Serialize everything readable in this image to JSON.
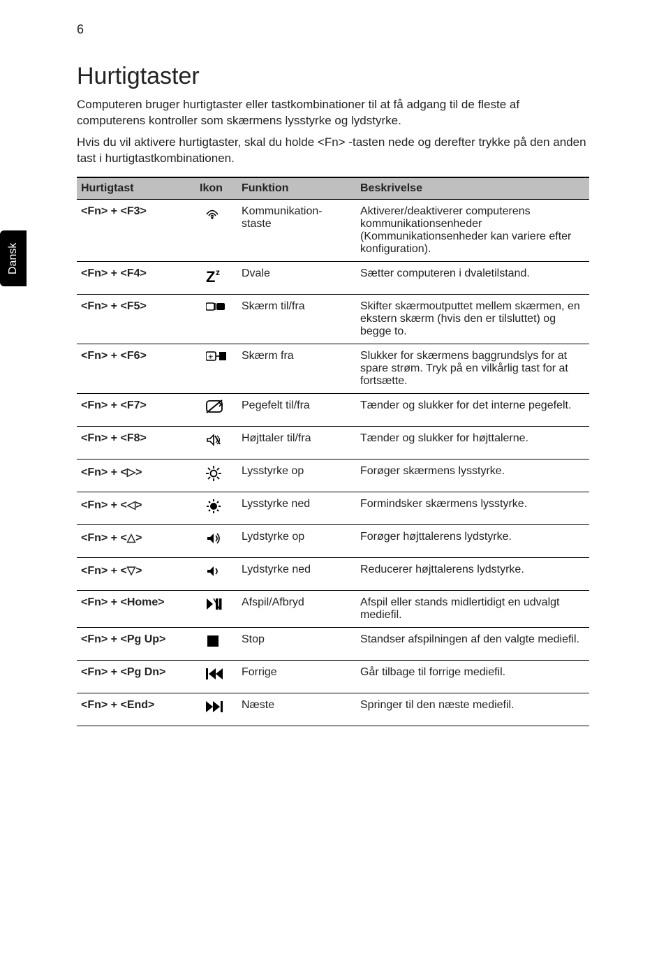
{
  "page_number": "6",
  "side_tab": "Dansk",
  "heading": "Hurtigtaster",
  "intro_paragraphs": [
    "Computeren bruger hurtigtaster eller tastkombinationer til at få adgang til de fleste af computerens kontroller som skærmens lysstyrke og lydstyrke.",
    "Hvis du vil aktivere hurtigtaster, skal du holde <Fn> -tasten nede og derefter trykke på den anden tast i hurtigtastkombinationen."
  ],
  "table": {
    "headers": [
      "Hurtigtast",
      "Ikon",
      "Funktion",
      "Beskrivelse"
    ],
    "col_widths": [
      "170px",
      "60px",
      "170px",
      "auto"
    ],
    "rows": [
      {
        "hotkey": "<Fn> + <F3>",
        "icon": "wireless",
        "function": "Kommunikation-staste",
        "desc": "Aktiverer/deaktiverer computerens kommunikationsenheder (Kommunikationsenheder kan variere efter konfiguration)."
      },
      {
        "hotkey": "<Fn> + <F4>",
        "icon": "sleep",
        "function": "Dvale",
        "desc": "Sætter computeren i dvaletilstand."
      },
      {
        "hotkey": "<Fn> + <F5>",
        "icon": "display",
        "function": "Skærm til/fra",
        "desc": "Skifter skærmoutputtet mellem skærmen, en ekstern skærm (hvis den er tilsluttet) og begge to."
      },
      {
        "hotkey": "<Fn> + <F6>",
        "icon": "screenoff",
        "function": "Skærm fra",
        "desc": "Slukker for skærmens baggrundslys for at spare strøm. Tryk på en vilkårlig tast for at fortsætte."
      },
      {
        "hotkey": "<Fn> + <F7>",
        "icon": "touchpad",
        "function": "Pegefelt til/fra",
        "desc": "Tænder og slukker for det interne pegefelt."
      },
      {
        "hotkey": "<Fn> + <F8>",
        "icon": "mute",
        "function": "Højttaler til/fra",
        "desc": "Tænder og slukker for højttalerne."
      },
      {
        "hotkey": "<Fn> + <▷>",
        "icon": "brightup",
        "function": "Lysstyrke op",
        "desc": "Forøger skærmens lysstyrke."
      },
      {
        "hotkey": "<Fn> + <◁>",
        "icon": "brightdown",
        "function": "Lysstyrke ned",
        "desc": "Formindsker skærmens lysstyrke."
      },
      {
        "hotkey": "<Fn> + <△>",
        "icon": "volup",
        "function": "Lydstyrke op",
        "desc": "Forøger højttalerens lydstyrke."
      },
      {
        "hotkey": "<Fn> + <▽>",
        "icon": "voldown",
        "function": "Lydstyrke ned",
        "desc": "Reducerer højttalerens lydstyrke."
      },
      {
        "hotkey": "<Fn> + <Home>",
        "icon": "playpause",
        "function": "Afspil/Afbryd",
        "desc": "Afspil eller stands midlertidigt en udvalgt mediefil."
      },
      {
        "hotkey": "<Fn> + <Pg Up>",
        "icon": "stop",
        "function": "Stop",
        "desc": "Standser afspilningen af den valgte mediefil."
      },
      {
        "hotkey": "<Fn> + <Pg Dn>",
        "icon": "prev",
        "function": "Forrige",
        "desc": "Går tilbage til forrige mediefil."
      },
      {
        "hotkey": "<Fn> + <End>",
        "icon": "next",
        "function": "Næste",
        "desc": "Springer til den næste mediefil."
      }
    ],
    "icons": {
      "wireless": {
        "label": "wireless-icon"
      },
      "sleep": {
        "label": "sleep-icon"
      },
      "display": {
        "label": "display-toggle-icon"
      },
      "screenoff": {
        "label": "screen-off-icon"
      },
      "touchpad": {
        "label": "touchpad-icon"
      },
      "mute": {
        "label": "mute-icon"
      },
      "brightup": {
        "label": "brightness-up-icon"
      },
      "brightdown": {
        "label": "brightness-down-icon"
      },
      "volup": {
        "label": "volume-up-icon"
      },
      "voldown": {
        "label": "volume-down-icon"
      },
      "playpause": {
        "label": "play-pause-icon"
      },
      "stop": {
        "label": "stop-icon"
      },
      "prev": {
        "label": "previous-track-icon"
      },
      "next": {
        "label": "next-track-icon"
      }
    }
  },
  "colors": {
    "text": "#222222",
    "header_bg": "#bfbfbf",
    "rule": "#000000",
    "tab_bg": "#000000",
    "tab_fg": "#ffffff"
  },
  "typography": {
    "body_pt": 12,
    "heading_pt": 26,
    "font_family": "Segoe UI / Tahoma"
  }
}
